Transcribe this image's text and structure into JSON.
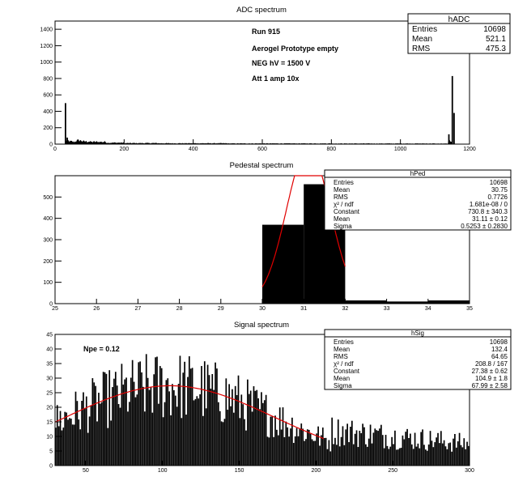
{
  "chart_data": [
    {
      "type": "bar",
      "title": "ADC spectrum",
      "histogram": "hADC",
      "xlim": [
        0,
        1200
      ],
      "ylim": [
        0,
        1500
      ],
      "xticks": [
        0,
        200,
        400,
        600,
        800,
        1000,
        1200
      ],
      "yticks": [
        0,
        200,
        400,
        600,
        800,
        1000,
        1200,
        1400
      ],
      "annotations": [
        "Run  915",
        "Aerogel Prototype empty",
        "NEG hV = 1500 V",
        "Att 1 amp 10x"
      ],
      "stats": [
        {
          "label": "Entries",
          "value": "10698"
        },
        {
          "label": "Mean",
          "value": "521.1"
        },
        {
          "label": "RMS",
          "value": "475.3"
        }
      ],
      "x": [
        30,
        35,
        40,
        50,
        60,
        80,
        100,
        150,
        200,
        300,
        400,
        500,
        600,
        700,
        800,
        900,
        1000,
        1100,
        1140,
        1150,
        1155
      ],
      "values": [
        500,
        80,
        30,
        25,
        40,
        30,
        25,
        15,
        10,
        8,
        8,
        6,
        6,
        6,
        5,
        5,
        5,
        4,
        120,
        830,
        380
      ]
    },
    {
      "type": "bar",
      "title": "Pedestal spectrum",
      "histogram": "hPed",
      "xlim": [
        25,
        35
      ],
      "ylim": [
        0,
        600
      ],
      "xticks": [
        25,
        26,
        27,
        28,
        29,
        30,
        31,
        32,
        33,
        34,
        35
      ],
      "yticks": [
        0,
        100,
        200,
        300,
        400,
        500
      ],
      "bins": [
        [
          30,
          31,
          370
        ],
        [
          31,
          32,
          560
        ],
        [
          32,
          33,
          15
        ],
        [
          33,
          34,
          10
        ],
        [
          34,
          35,
          15
        ]
      ],
      "fit": {
        "type": "gaussian",
        "constant": 730.8,
        "mean": 31.11,
        "sigma": 0.5253
      },
      "stats": [
        {
          "label": "Entries",
          "value": "10698"
        },
        {
          "label": "Mean",
          "value": "30.75"
        },
        {
          "label": "RMS",
          "value": "0.7726"
        },
        {
          "label": "χ² / ndf",
          "value": "1.681e-08 / 0"
        },
        {
          "label": "Constant",
          "value": "730.8 ± 340.3"
        },
        {
          "label": "Mean",
          "value": "31.11 ± 0.12"
        },
        {
          "label": "Sigma",
          "value": "0.5253 ± 0.2830"
        }
      ]
    },
    {
      "type": "bar",
      "title": "Signal spectrum",
      "histogram": "hSig",
      "xlim": [
        30,
        300
      ],
      "ylim": [
        0,
        45
      ],
      "xticks": [
        50,
        100,
        150,
        200,
        250,
        300
      ],
      "yticks": [
        0,
        5,
        10,
        15,
        20,
        25,
        30,
        35,
        40,
        45
      ],
      "annotation": "Npe = 0.12",
      "fit": {
        "type": "gaussian",
        "constant": 27.38,
        "mean": 104.9,
        "sigma": 67.99,
        "range": [
          30,
          205
        ]
      },
      "stats": [
        {
          "label": "Entries",
          "value": "10698"
        },
        {
          "label": "Mean",
          "value": "132.4"
        },
        {
          "label": "RMS",
          "value": "64.65"
        },
        {
          "label": "χ² / ndf",
          "value": "208.8 / 167"
        },
        {
          "label": "Constant",
          "value": "27.38 ± 0.62"
        },
        {
          "label": "Mean",
          "value": "104.9 ± 1.8"
        },
        {
          "label": "Sigma",
          "value": "67.99 ± 2.58"
        }
      ]
    }
  ]
}
